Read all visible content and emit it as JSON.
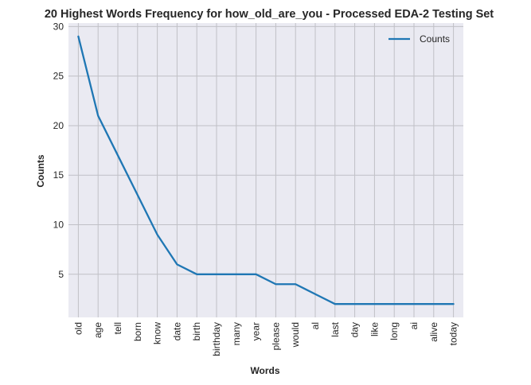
{
  "chart_data": {
    "type": "line",
    "title": "20 Highest Words Frequency for how_old_are_you - Processed EDA-2 Testing Set",
    "xlabel": "Words",
    "ylabel": "Counts",
    "categories": [
      "old",
      "age",
      "tell",
      "born",
      "know",
      "date",
      "birth",
      "birthday",
      "many",
      "year",
      "please",
      "would",
      "al",
      "last",
      "day",
      "like",
      "long",
      "ai",
      "alive",
      "today"
    ],
    "series": [
      {
        "name": "Counts",
        "values": [
          29,
          21,
          17,
          13,
          9,
          6,
          5,
          5,
          5,
          5,
          4,
          4,
          3,
          2,
          2,
          2,
          2,
          2,
          2,
          2
        ]
      }
    ],
    "ylim": [
      0.65,
      30.35
    ],
    "yticks": [
      5,
      10,
      15,
      20,
      25,
      30
    ],
    "grid": true,
    "legend_position": "top-right",
    "colors": {
      "line": "#1f77b4",
      "plot_bg": "#eaeaf2",
      "grid": "#c0c0c6"
    }
  }
}
